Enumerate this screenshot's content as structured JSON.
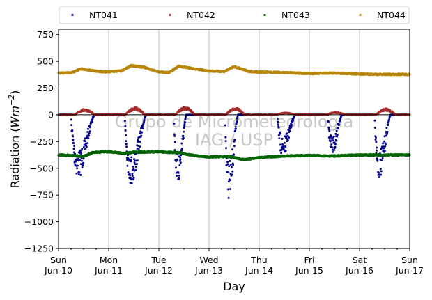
{
  "chart_data": {
    "type": "scatter",
    "xlabel": "Day",
    "ylabel_prefix": "Radiation (",
    "ylabel_unit": "Wm",
    "ylabel_exp": "−2",
    "ylabel_suffix": ")",
    "ylim": [
      -1250,
      800
    ],
    "yticks": [
      750,
      500,
      250,
      0,
      -250,
      -500,
      -750,
      -1000,
      -1250
    ],
    "ytick_labels": [
      "750",
      "500",
      "250",
      "0",
      "−250",
      "−500",
      "−750",
      "−1000",
      "−1250"
    ],
    "xlim": [
      0,
      7
    ],
    "xticks": [
      {
        "day": 0,
        "weekday": "Sun",
        "date": "Jun-10"
      },
      {
        "day": 1,
        "weekday": "Mon",
        "date": "Jun-11"
      },
      {
        "day": 2,
        "weekday": "Tue",
        "date": "Jun-12"
      },
      {
        "day": 3,
        "weekday": "Wed",
        "date": "Jun-13"
      },
      {
        "day": 4,
        "weekday": "Thu",
        "date": "Jun-14"
      },
      {
        "day": 5,
        "weekday": "Fri",
        "date": "Jun-15"
      },
      {
        "day": 6,
        "weekday": "Sat",
        "date": "Jun-16"
      },
      {
        "day": 7,
        "weekday": "Sun",
        "date": "Jun-17"
      }
    ],
    "grid": "vertical",
    "legend_position": "top",
    "watermark": [
      "Grupo de Micrometeorologia",
      "IAG / USP"
    ],
    "series": [
      {
        "name": "NT041",
        "color": "#00008b",
        "baseline": 0,
        "daily_minima": [
          -590,
          -665,
          -660,
          -790,
          -390,
          -380,
          -600
        ],
        "daily_onset": [
          0.25,
          1.32,
          2.3,
          3.32,
          4.36,
          5.37,
          6.3
        ],
        "daily_end": [
          0.72,
          1.75,
          2.55,
          3.58,
          4.72,
          5.65,
          6.62
        ]
      },
      {
        "name": "NT042",
        "color": "#a52a2a",
        "baseline": 0,
        "daily_peaks": [
          55,
          70,
          75,
          65,
          20,
          25,
          60
        ]
      },
      {
        "name": "NT043",
        "color": "#006400",
        "points": [
          [
            0,
            -375
          ],
          [
            0.3,
            -380
          ],
          [
            0.5,
            -390
          ],
          [
            0.7,
            -350
          ],
          [
            1.0,
            -345
          ],
          [
            1.3,
            -360
          ],
          [
            1.5,
            -350
          ],
          [
            2.0,
            -345
          ],
          [
            2.4,
            -355
          ],
          [
            2.7,
            -380
          ],
          [
            3.0,
            -395
          ],
          [
            3.4,
            -390
          ],
          [
            3.7,
            -420
          ],
          [
            4.0,
            -400
          ],
          [
            4.5,
            -385
          ],
          [
            5.0,
            -380
          ],
          [
            5.5,
            -385
          ],
          [
            6.0,
            -375
          ],
          [
            6.5,
            -375
          ],
          [
            7.0,
            -375
          ]
        ]
      },
      {
        "name": "NT044",
        "color": "#b8860b",
        "points": [
          [
            0,
            390
          ],
          [
            0.25,
            392
          ],
          [
            0.45,
            430
          ],
          [
            0.65,
            415
          ],
          [
            0.9,
            400
          ],
          [
            1.25,
            410
          ],
          [
            1.45,
            460
          ],
          [
            1.7,
            445
          ],
          [
            2.0,
            400
          ],
          [
            2.2,
            395
          ],
          [
            2.4,
            455
          ],
          [
            2.7,
            430
          ],
          [
            3.0,
            410
          ],
          [
            3.3,
            405
          ],
          [
            3.5,
            450
          ],
          [
            3.8,
            405
          ],
          [
            4.0,
            400
          ],
          [
            4.5,
            395
          ],
          [
            5.0,
            385
          ],
          [
            5.5,
            390
          ],
          [
            6.0,
            380
          ],
          [
            6.5,
            378
          ],
          [
            7.0,
            378
          ]
        ]
      }
    ]
  }
}
